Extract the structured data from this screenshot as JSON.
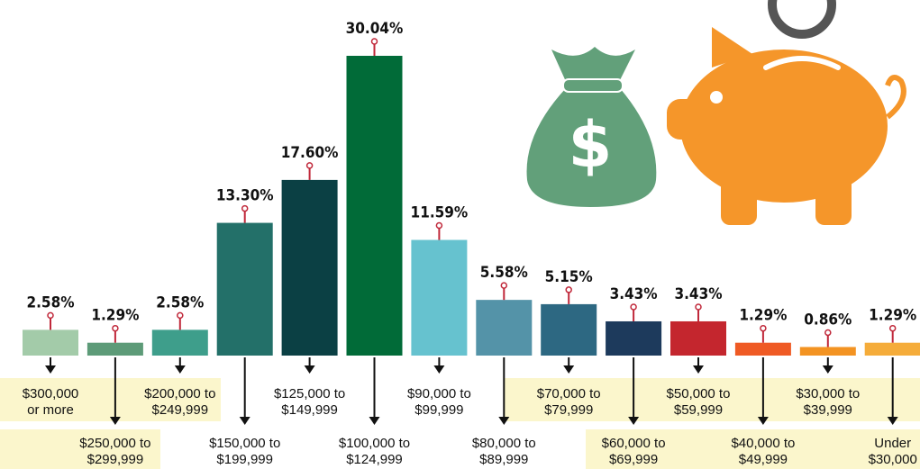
{
  "chart_data": {
    "type": "bar",
    "categories": [
      [
        "$300,000",
        "or more"
      ],
      [
        "$250,000 to",
        "$299,999"
      ],
      [
        "$200,000 to",
        "$249,999"
      ],
      [
        "$150,000 to",
        "$199,999"
      ],
      [
        "$125,000 to",
        "$149,999"
      ],
      [
        "$100,000 to",
        "$124,999"
      ],
      [
        "$90,000 to",
        "$99,999"
      ],
      [
        "$80,000 to",
        "$89,999"
      ],
      [
        "$70,000 to",
        "$79,999"
      ],
      [
        "$60,000 to",
        "$69,999"
      ],
      [
        "$50,000 to",
        "$59,999"
      ],
      [
        "$40,000 to",
        "$49,999"
      ],
      [
        "$30,000 to",
        "$39,999"
      ],
      [
        "Under",
        "$30,000"
      ]
    ],
    "values": [
      2.58,
      1.29,
      2.58,
      13.3,
      17.6,
      30.04,
      11.59,
      5.58,
      5.15,
      3.43,
      3.43,
      1.29,
      0.86,
      1.29
    ],
    "value_labels": [
      "2.58%",
      "1.29%",
      "2.58%",
      "13.30%",
      "17.60%",
      "30.04%",
      "11.59%",
      "5.58%",
      "5.15%",
      "3.43%",
      "3.43%",
      "1.29%",
      "0.86%",
      "1.29%"
    ],
    "colors": [
      "#a3cba9",
      "#5d9b78",
      "#3e9e8b",
      "#237069",
      "#0b4044",
      "#016b38",
      "#66c2cf",
      "#5493a8",
      "#2d6882",
      "#1d3a5c",
      "#c4262e",
      "#ef5a24",
      "#f39322",
      "#f5ac3a"
    ]
  }
}
